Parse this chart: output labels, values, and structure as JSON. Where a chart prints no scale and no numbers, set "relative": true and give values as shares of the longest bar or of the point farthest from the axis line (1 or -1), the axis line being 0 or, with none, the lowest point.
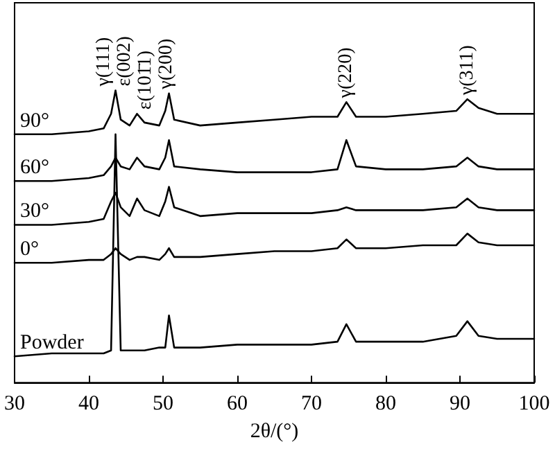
{
  "chart_data": {
    "type": "line",
    "relative": true,
    "xlabel": "2θ/(°)",
    "xlim": [
      30,
      100
    ],
    "xticks": [
      30,
      40,
      50,
      60,
      70,
      80,
      90,
      100
    ],
    "grid": false,
    "legend": false,
    "marker": "none",
    "line_style": "solid",
    "x": [
      30,
      35,
      40,
      42,
      43,
      43.6,
      44.3,
      45.5,
      46.5,
      47.5,
      49.5,
      50.3,
      50.8,
      51.5,
      55,
      60,
      65,
      70,
      73.5,
      74.7,
      76,
      80,
      85,
      89.5,
      91,
      92.5,
      95,
      100
    ],
    "series": [
      {
        "name": "90°",
        "color": "#000000",
        "values": [
          0.85,
          0.85,
          0.86,
          0.87,
          0.92,
          1,
          0.9,
          0.88,
          0.92,
          0.89,
          0.88,
          0.93,
          0.99,
          0.9,
          0.88,
          0.89,
          0.9,
          0.91,
          0.91,
          0.96,
          0.91,
          0.91,
          0.92,
          0.93,
          0.97,
          0.94,
          0.92,
          0.92
        ]
      },
      {
        "name": "60°",
        "color": "#000000",
        "values": [
          0.69,
          0.69,
          0.7,
          0.71,
          0.74,
          0.77,
          0.74,
          0.73,
          0.77,
          0.74,
          0.73,
          0.77,
          0.83,
          0.74,
          0.73,
          0.72,
          0.72,
          0.72,
          0.73,
          0.83,
          0.74,
          0.73,
          0.73,
          0.74,
          0.77,
          0.74,
          0.73,
          0.73
        ]
      },
      {
        "name": "30°",
        "color": "#000000",
        "values": [
          0.54,
          0.54,
          0.55,
          0.56,
          0.62,
          0.65,
          0.6,
          0.57,
          0.63,
          0.59,
          0.57,
          0.62,
          0.67,
          0.6,
          0.57,
          0.58,
          0.58,
          0.58,
          0.59,
          0.6,
          0.59,
          0.59,
          0.59,
          0.6,
          0.63,
          0.6,
          0.59,
          0.59
        ]
      },
      {
        "name": "0°",
        "color": "#000000",
        "values": [
          0.41,
          0.41,
          0.42,
          0.42,
          0.44,
          0.46,
          0.44,
          0.42,
          0.43,
          0.43,
          0.42,
          0.44,
          0.46,
          0.43,
          0.43,
          0.44,
          0.45,
          0.45,
          0.46,
          0.49,
          0.46,
          0.46,
          0.47,
          0.47,
          0.51,
          0.48,
          0.47,
          0.47
        ]
      },
      {
        "name": "Powder",
        "color": "#000000",
        "values": [
          0.09,
          0.1,
          0.1,
          0.1,
          0.11,
          0.85,
          0.11,
          0.11,
          0.11,
          0.11,
          0.12,
          0.12,
          0.23,
          0.12,
          0.12,
          0.13,
          0.13,
          0.13,
          0.14,
          0.2,
          0.14,
          0.14,
          0.14,
          0.16,
          0.21,
          0.16,
          0.15,
          0.15
        ]
      }
    ],
    "annotations": [
      {
        "text": "γ(111)",
        "x": 43.6,
        "y": 1
      },
      {
        "text": "ε(002)",
        "x": 44.3,
        "y": 0.9
      },
      {
        "text": "ε(101̄1)",
        "x": 46.5,
        "y": 0.92
      },
      {
        "text": "γ(200)",
        "x": 50.8,
        "y": 0.99
      },
      {
        "text": "γ(220)",
        "x": 74.7,
        "y": 0.96
      },
      {
        "text": "γ(311)",
        "x": 91,
        "y": 0.97
      }
    ]
  }
}
